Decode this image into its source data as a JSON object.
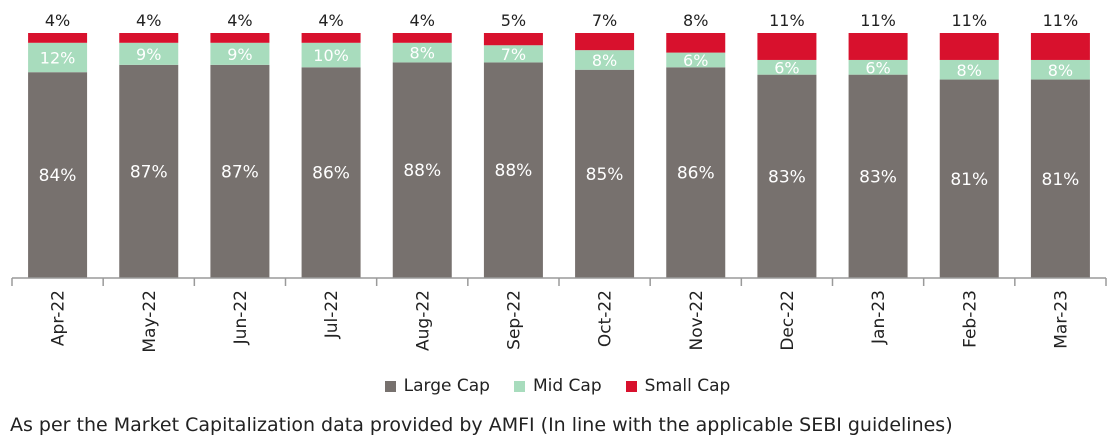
{
  "chart_data": {
    "type": "bar",
    "stacked": true,
    "categories": [
      "Apr-22",
      "May-22",
      "Jun-22",
      "Jul-22",
      "Aug-22",
      "Sep-22",
      "Oct-22",
      "Nov-22",
      "Dec-22",
      "Jan-23",
      "Feb-23",
      "Mar-23"
    ],
    "series": [
      {
        "name": "Large Cap",
        "color": "#77716e",
        "values": [
          84,
          87,
          87,
          86,
          88,
          88,
          85,
          86,
          83,
          83,
          81,
          81
        ]
      },
      {
        "name": "Mid Cap",
        "color": "#a8dcbd",
        "values": [
          12,
          9,
          9,
          10,
          8,
          7,
          8,
          6,
          6,
          6,
          8,
          8
        ]
      },
      {
        "name": "Small Cap",
        "color": "#d8112d",
        "values": [
          4,
          4,
          4,
          4,
          4,
          5,
          7,
          8,
          11,
          11,
          11,
          11
        ]
      }
    ],
    "value_suffix": "%",
    "ylim": [
      0,
      100
    ],
    "legend_position": "bottom",
    "grid": false
  },
  "footnote": "As per the Market Capitalization data provided by AMFI (In line with the applicable SEBI guidelines)"
}
